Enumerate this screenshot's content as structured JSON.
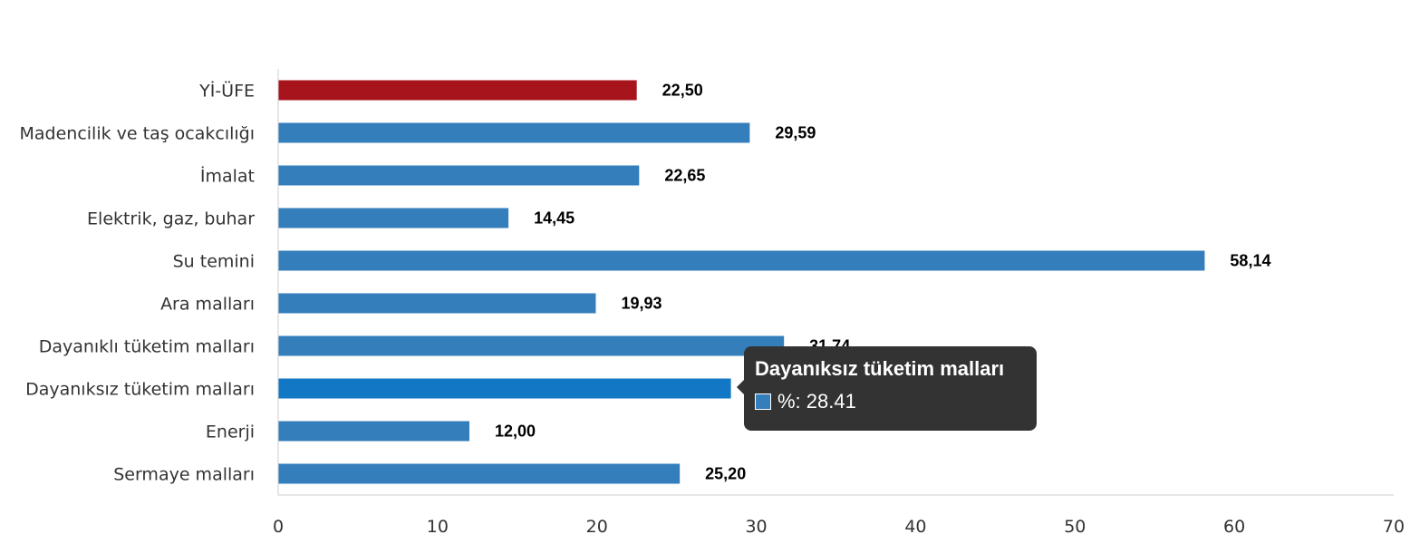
{
  "chart_data": {
    "type": "bar",
    "orientation": "horizontal",
    "categories": [
      "Yİ-ÜFE",
      "Madencilik ve taş ocakcılığı",
      "İmalat",
      "Elektrik, gaz, buhar",
      "Su temini",
      "Ara malları",
      "Dayanıklı tüketim malları",
      "Dayanıksız tüketim malları",
      "Enerji",
      "Sermaye malları"
    ],
    "values": [
      22.5,
      29.59,
      22.65,
      14.45,
      58.14,
      19.93,
      31.74,
      28.41,
      12.0,
      25.2
    ],
    "value_labels": [
      "22,50",
      "29,59",
      "22,65",
      "14,45",
      "58,14",
      "19,93",
      "31,74",
      "28,41",
      "12,00",
      "25,20"
    ],
    "xlim": [
      0,
      70
    ],
    "x_ticks": [
      0,
      10,
      20,
      30,
      40,
      50,
      60,
      70
    ],
    "grid": false,
    "bar_colors": {
      "default": "#337ebb",
      "highlight": "#a8141b",
      "hover": "#1277c5"
    },
    "highlighted_category": "Yİ-ÜFE",
    "hovered_category": "Dayanıksız tüketim malları"
  },
  "tooltip": {
    "title": "Dayanıksız tüketim malları",
    "series_label": "%: 28.41",
    "swatch_color": "#337ebb"
  }
}
